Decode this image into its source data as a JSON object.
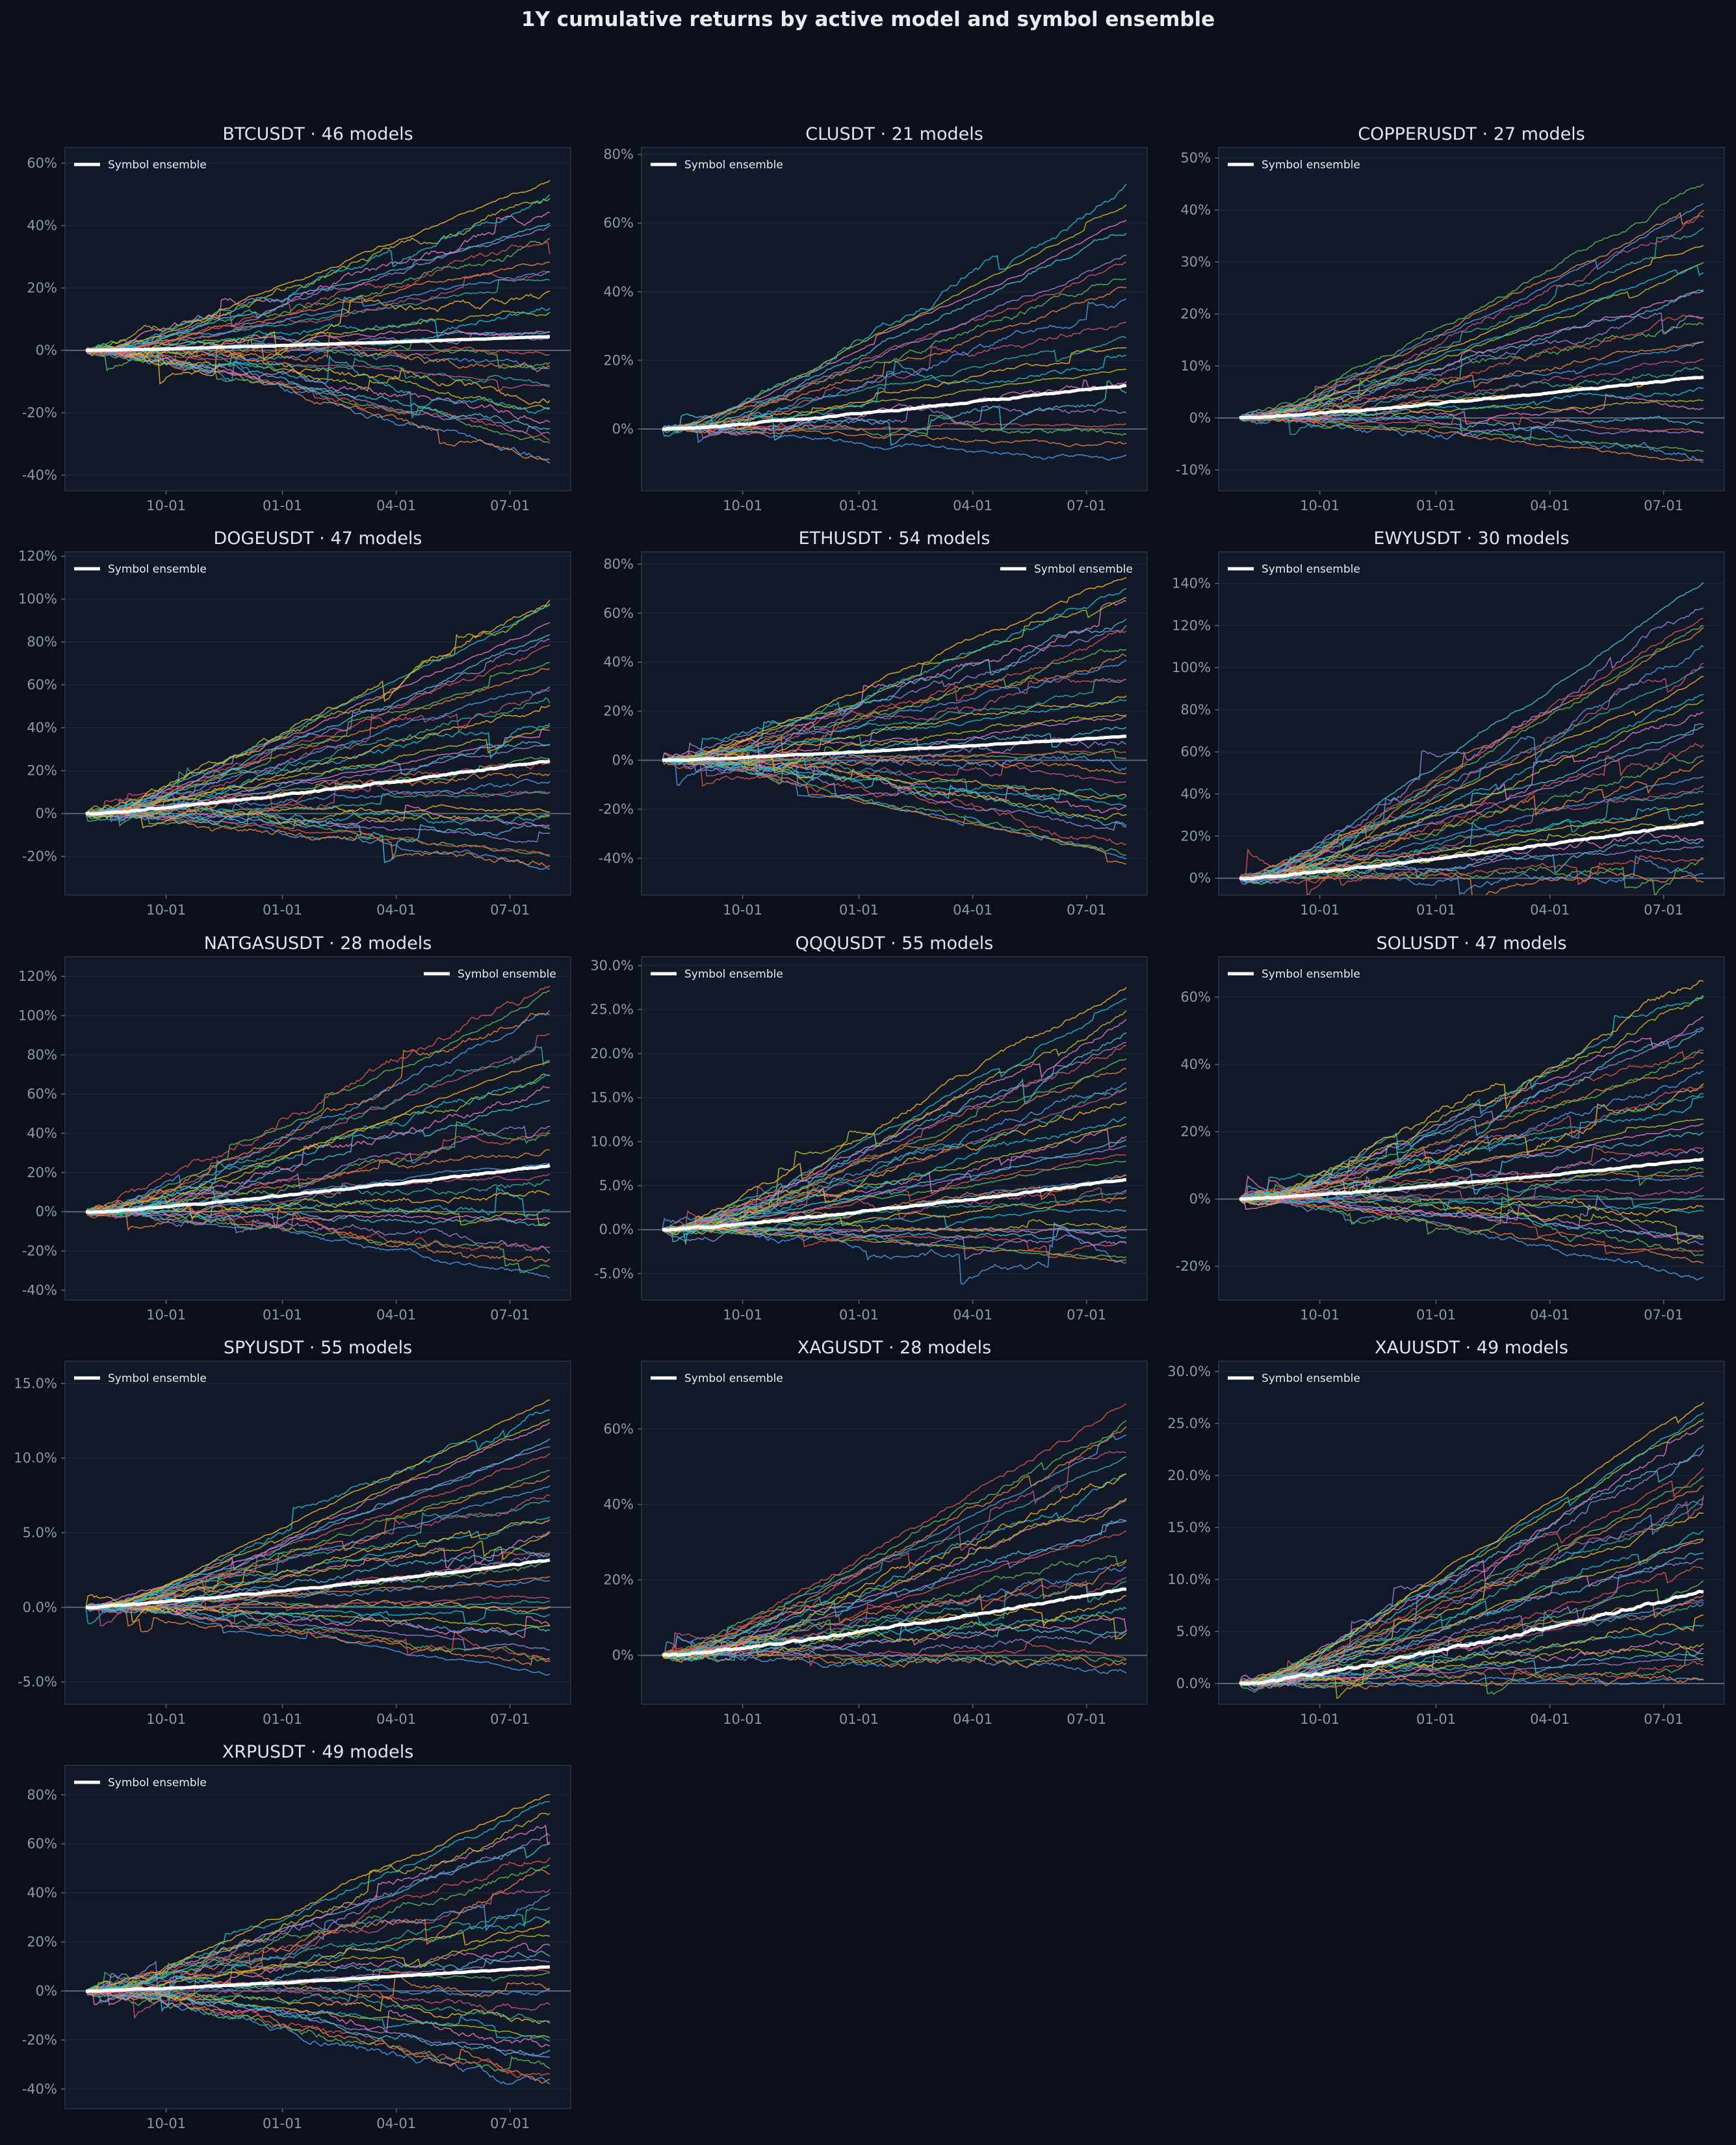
{
  "suptitle": "1Y cumulative returns by active model and symbol ensemble",
  "legend_label": "Symbol ensemble",
  "colors": {
    "background": "#0a0f1b",
    "panel": "#111827",
    "ensemble": "#ffffff",
    "palette": [
      "#4c9be8",
      "#e8823c",
      "#5cb85c",
      "#d9534f",
      "#9b7fd4",
      "#3ec1d3",
      "#e377c2",
      "#bcbd22",
      "#17becf",
      "#f0b429",
      "#2fb39a",
      "#c7537a"
    ]
  },
  "chart_data": [
    {
      "type": "line",
      "title": "BTCUSDT · 46 models",
      "models": 46,
      "ylim": [
        -45,
        65
      ],
      "yticks": [
        -40,
        -20,
        0,
        20,
        40,
        60
      ],
      "ytick_labels": [
        "-40%",
        "-20%",
        "0%",
        "20%",
        "40%",
        "60%"
      ],
      "xticks": [
        "10-01",
        "01-01",
        "04-01",
        "07-01"
      ],
      "legend_loc": "upper left",
      "ensemble_final": 4.5,
      "model_range": [
        -37,
        57
      ]
    },
    {
      "type": "line",
      "title": "CLUSDT · 21 models",
      "models": 21,
      "ylim": [
        -18,
        82
      ],
      "yticks": [
        0,
        20,
        40,
        60,
        80
      ],
      "ytick_labels": [
        "0%",
        "20%",
        "40%",
        "60%",
        "80%"
      ],
      "xticks": [
        "10-01",
        "01-01",
        "04-01",
        "07-01"
      ],
      "legend_loc": "upper left",
      "ensemble_final": 13,
      "model_range": [
        -8,
        75
      ]
    },
    {
      "type": "line",
      "title": "COPPERUSDT · 27 models",
      "models": 27,
      "ylim": [
        -14,
        52
      ],
      "yticks": [
        -10,
        0,
        10,
        20,
        30,
        40,
        50
      ],
      "ytick_labels": [
        "-10%",
        "0%",
        "10%",
        "20%",
        "30%",
        "40%",
        "50%"
      ],
      "xticks": [
        "10-01",
        "01-01",
        "04-01",
        "07-01"
      ],
      "legend_loc": "upper left",
      "ensemble_final": 8,
      "model_range": [
        -9,
        48
      ]
    },
    {
      "type": "line",
      "title": "DOGEUSDT · 47 models",
      "models": 47,
      "ylim": [
        -38,
        122
      ],
      "yticks": [
        -20,
        0,
        20,
        40,
        60,
        80,
        100,
        120
      ],
      "ytick_labels": [
        "-20%",
        "0%",
        "20%",
        "40%",
        "60%",
        "80%",
        "100%",
        "120%"
      ],
      "xticks": [
        "10-01",
        "01-01",
        "04-01",
        "07-01"
      ],
      "legend_loc": "upper left",
      "ensemble_final": 25,
      "model_range": [
        -27,
        110
      ]
    },
    {
      "type": "line",
      "title": "ETHUSDT · 54 models",
      "models": 54,
      "ylim": [
        -55,
        85
      ],
      "yticks": [
        -40,
        -20,
        0,
        20,
        40,
        60,
        80
      ],
      "ytick_labels": [
        "-40%",
        "-20%",
        "0%",
        "20%",
        "40%",
        "60%",
        "80%"
      ],
      "xticks": [
        "10-01",
        "01-01",
        "04-01",
        "07-01"
      ],
      "legend_loc": "upper right",
      "ensemble_final": 10,
      "model_range": [
        -45,
        80
      ]
    },
    {
      "type": "line",
      "title": "EWYUSDT · 30 models",
      "models": 30,
      "ylim": [
        -8,
        155
      ],
      "yticks": [
        0,
        20,
        40,
        60,
        80,
        100,
        120,
        140
      ],
      "ytick_labels": [
        "0%",
        "20%",
        "40%",
        "60%",
        "80%",
        "100%",
        "120%",
        "140%"
      ],
      "xticks": [
        "10-01",
        "01-01",
        "04-01",
        "07-01"
      ],
      "legend_loc": "upper left",
      "ensemble_final": 27,
      "model_range": [
        0,
        150
      ]
    },
    {
      "type": "line",
      "title": "NATGASUSDT · 28 models",
      "models": 28,
      "ylim": [
        -45,
        130
      ],
      "yticks": [
        -40,
        -20,
        0,
        20,
        40,
        60,
        80,
        100,
        120
      ],
      "ytick_labels": [
        "-40%",
        "-20%",
        "0%",
        "20%",
        "40%",
        "60%",
        "80%",
        "100%",
        "120%"
      ],
      "xticks": [
        "10-01",
        "01-01",
        "04-01",
        "07-01"
      ],
      "legend_loc": "upper right",
      "ensemble_final": 24,
      "model_range": [
        -35,
        125
      ]
    },
    {
      "type": "line",
      "title": "QQQUSDT · 55 models",
      "models": 55,
      "ylim": [
        -8,
        31
      ],
      "yticks": [
        -5,
        0,
        5,
        10,
        15,
        20,
        25,
        30
      ],
      "ytick_labels": [
        "-5.0%",
        "0.0%",
        "5.0%",
        "10.0%",
        "15.0%",
        "20.0%",
        "25.0%",
        "30.0%"
      ],
      "xticks": [
        "10-01",
        "01-01",
        "04-01",
        "07-01"
      ],
      "legend_loc": "upper left",
      "ensemble_final": 5.8,
      "model_range": [
        -4.5,
        29
      ]
    },
    {
      "type": "line",
      "title": "SOLUSDT · 47 models",
      "models": 47,
      "ylim": [
        -30,
        72
      ],
      "yticks": [
        -20,
        0,
        20,
        40,
        60
      ],
      "ytick_labels": [
        "-20%",
        "0%",
        "20%",
        "40%",
        "60%"
      ],
      "xticks": [
        "10-01",
        "01-01",
        "04-01",
        "07-01"
      ],
      "legend_loc": "upper left",
      "ensemble_final": 12,
      "model_range": [
        -23,
        69
      ]
    },
    {
      "type": "line",
      "title": "SPYUSDT · 55 models",
      "models": 55,
      "ylim": [
        -6.5,
        16.5
      ],
      "yticks": [
        -5,
        0,
        5,
        10,
        15
      ],
      "ytick_labels": [
        "-5.0%",
        "0.0%",
        "5.0%",
        "10.0%",
        "15.0%"
      ],
      "xticks": [
        "10-01",
        "01-01",
        "04-01",
        "07-01"
      ],
      "legend_loc": "upper left",
      "ensemble_final": 3.2,
      "model_range": [
        -4.5,
        15
      ]
    },
    {
      "type": "line",
      "title": "XAGUSDT · 28 models",
      "models": 28,
      "ylim": [
        -13,
        78
      ],
      "yticks": [
        0,
        20,
        40,
        60
      ],
      "ytick_labels": [
        "0%",
        "20%",
        "40%",
        "60%"
      ],
      "xticks": [
        "10-01",
        "01-01",
        "04-01",
        "07-01"
      ],
      "legend_loc": "upper left",
      "ensemble_final": 18,
      "model_range": [
        -5,
        72
      ]
    },
    {
      "type": "line",
      "title": "XAUUSDT · 49 models",
      "models": 49,
      "ylim": [
        -2,
        31
      ],
      "yticks": [
        0,
        5,
        10,
        15,
        20,
        25,
        30
      ],
      "ytick_labels": [
        "0.0%",
        "5.0%",
        "10.0%",
        "15.0%",
        "20.0%",
        "25.0%",
        "30.0%"
      ],
      "xticks": [
        "10-01",
        "01-01",
        "04-01",
        "07-01"
      ],
      "legend_loc": "upper left",
      "ensemble_final": 9,
      "model_range": [
        0,
        29
      ]
    },
    {
      "type": "line",
      "title": "XRPUSDT · 49 models",
      "models": 49,
      "ylim": [
        -48,
        92
      ],
      "yticks": [
        -40,
        -20,
        0,
        20,
        40,
        60,
        80
      ],
      "ytick_labels": [
        "-40%",
        "-20%",
        "0%",
        "20%",
        "40%",
        "60%",
        "80%"
      ],
      "xticks": [
        "10-01",
        "01-01",
        "04-01",
        "07-01"
      ],
      "legend_loc": "upper left",
      "ensemble_final": 10,
      "model_range": [
        -43,
        87
      ]
    }
  ]
}
